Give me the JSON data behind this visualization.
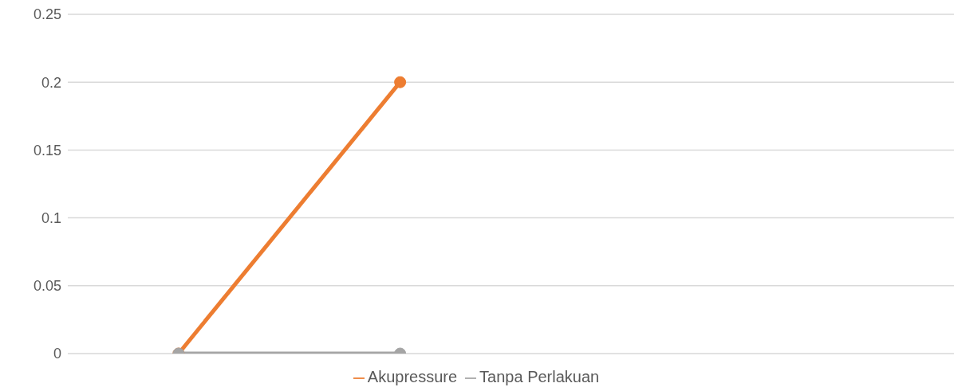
{
  "chart_data": {
    "type": "line",
    "categories": [
      null,
      null,
      null,
      null
    ],
    "series": [
      {
        "name": "Akupressure",
        "color": "#ed7d31",
        "values": [
          0,
          0.2,
          null,
          null
        ]
      },
      {
        "name": "Tanpa Perlakuan",
        "color": "#a5a5a5",
        "values": [
          0,
          0,
          null,
          null
        ]
      }
    ],
    "ylim": [
      0,
      0.25
    ],
    "yticks": [
      0,
      0.05,
      0.1,
      0.15,
      0.2,
      0.25
    ],
    "grid": "y",
    "legend": "bottom",
    "marker": "circle",
    "line_style": "solid",
    "tick_labels": "y"
  }
}
